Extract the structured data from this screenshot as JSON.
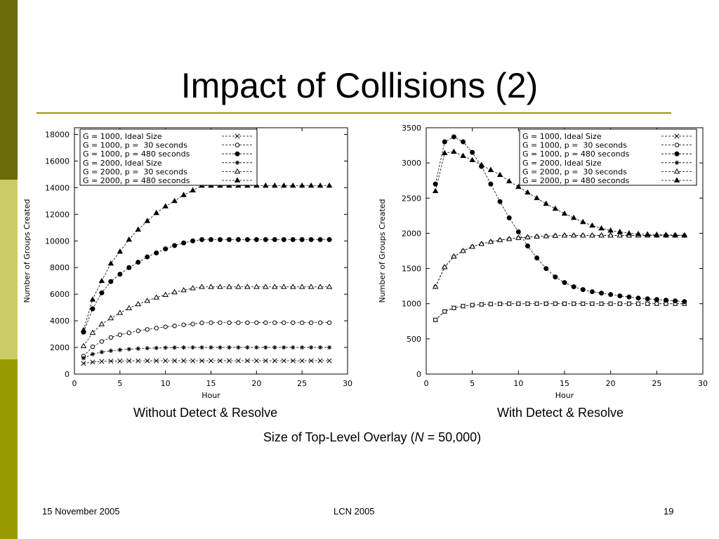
{
  "slide": {
    "title": "Impact of Collisions (2)",
    "caption_left": "Without Detect & Resolve",
    "caption_right": "With Detect & Resolve",
    "caption_size_prefix": "Size of Top-Level Overlay (",
    "caption_size_var": "N",
    "caption_size_suffix": " = 50,000)",
    "accent_dark": "#6b6b0a",
    "accent_light": "#cccc66",
    "accent_mid": "#999900"
  },
  "footer": {
    "date": "15 November 2005",
    "conference": "LCN 2005",
    "page": "19"
  },
  "chart_data": [
    {
      "type": "line",
      "subtitle": "Without Detect & Resolve",
      "xlabel": "Hour",
      "ylabel": "Number of Groups Created",
      "xlim": [
        0,
        30
      ],
      "ylim": [
        0,
        18500
      ],
      "xticks": [
        0,
        5,
        10,
        15,
        20,
        25,
        30
      ],
      "yticks": [
        0,
        2000,
        4000,
        6000,
        8000,
        10000,
        12000,
        14000,
        16000,
        18000
      ],
      "legend_position": "top-left",
      "grid": false,
      "x": [
        1,
        2,
        3,
        4,
        5,
        6,
        7,
        8,
        9,
        10,
        11,
        12,
        13,
        14,
        15,
        16,
        17,
        18,
        19,
        20,
        21,
        22,
        23,
        24,
        25,
        26,
        27,
        28
      ],
      "series": [
        {
          "name": "G = 1000, Ideal Size",
          "marker": "x",
          "values": [
            800,
            900,
            950,
            975,
            985,
            990,
            995,
            998,
            1000,
            1000,
            1000,
            1000,
            1000,
            1000,
            1000,
            1000,
            1000,
            1000,
            1000,
            1000,
            1000,
            1000,
            1000,
            1000,
            1000,
            1000,
            1000,
            1000
          ]
        },
        {
          "name": "G = 1000, p =  30 seconds",
          "marker": "circle-open",
          "values": [
            1350,
            2050,
            2450,
            2750,
            2950,
            3100,
            3250,
            3350,
            3450,
            3550,
            3620,
            3700,
            3760,
            3850,
            3860,
            3860,
            3860,
            3860,
            3860,
            3860,
            3860,
            3860,
            3860,
            3860,
            3860,
            3860,
            3860,
            3860
          ]
        },
        {
          "name": "G = 1000, p = 480 seconds",
          "marker": "circle-filled",
          "values": [
            3150,
            4900,
            6100,
            6950,
            7500,
            8000,
            8400,
            8800,
            9100,
            9400,
            9650,
            9850,
            10000,
            10100,
            10100,
            10100,
            10100,
            10100,
            10100,
            10100,
            10100,
            10100,
            10100,
            10100,
            10100,
            10100,
            10100,
            10100
          ]
        },
        {
          "name": "G = 2000, Ideal Size",
          "marker": "star",
          "values": [
            1200,
            1500,
            1650,
            1750,
            1820,
            1870,
            1910,
            1940,
            1960,
            1980,
            1990,
            1995,
            2000,
            2000,
            2000,
            2000,
            2000,
            2000,
            2000,
            2000,
            2000,
            2000,
            2000,
            2000,
            2000,
            2000,
            2000,
            2000
          ]
        },
        {
          "name": "G = 2000, p =  30 seconds",
          "marker": "triangle-open",
          "values": [
            2100,
            3100,
            3750,
            4200,
            4600,
            4950,
            5250,
            5500,
            5750,
            5950,
            6150,
            6300,
            6450,
            6550,
            6550,
            6550,
            6550,
            6550,
            6550,
            6550,
            6550,
            6550,
            6550,
            6550,
            6550,
            6550,
            6550,
            6550
          ]
        },
        {
          "name": "G = 2000, p = 480 seconds",
          "marker": "triangle-filled",
          "values": [
            3300,
            5600,
            7000,
            8300,
            9200,
            10100,
            10850,
            11500,
            12100,
            12600,
            13000,
            13450,
            13800,
            14150,
            14150,
            14150,
            14150,
            14150,
            14150,
            14150,
            14150,
            14150,
            14150,
            14150,
            14150,
            14150,
            14150,
            14150
          ]
        }
      ]
    },
    {
      "type": "line",
      "subtitle": "With Detect & Resolve",
      "xlabel": "Hour",
      "ylabel": "Number of Groups Created",
      "xlim": [
        0,
        30
      ],
      "ylim": [
        0,
        3500
      ],
      "xticks": [
        0,
        5,
        10,
        15,
        20,
        25,
        30
      ],
      "yticks": [
        0,
        500,
        1000,
        1500,
        2000,
        2500,
        3000,
        3500
      ],
      "legend_position": "top-right",
      "grid": false,
      "x": [
        1,
        2,
        3,
        4,
        5,
        6,
        7,
        8,
        9,
        10,
        11,
        12,
        13,
        14,
        15,
        16,
        17,
        18,
        19,
        20,
        21,
        22,
        23,
        24,
        25,
        26,
        27,
        28
      ],
      "series": [
        {
          "name": "G = 1000, Ideal Size",
          "marker": "x",
          "values": [
            770,
            890,
            940,
            965,
            980,
            990,
            995,
            998,
            1000,
            1000,
            1000,
            1000,
            1000,
            1000,
            1000,
            1000,
            1000,
            1000,
            1000,
            1000,
            1000,
            1000,
            1000,
            1000,
            1000,
            1000,
            1000,
            1000
          ]
        },
        {
          "name": "G = 1000, p =  30 seconds",
          "marker": "circle-open",
          "values": [
            770,
            890,
            940,
            965,
            980,
            990,
            995,
            998,
            1000,
            1000,
            1000,
            1000,
            1000,
            1000,
            1000,
            1000,
            1000,
            1000,
            1000,
            1000,
            1000,
            1000,
            1000,
            1000,
            1000,
            1000,
            1000,
            1000
          ]
        },
        {
          "name": "G = 1000, p = 480 seconds",
          "marker": "circle-filled",
          "values": [
            2700,
            3300,
            3370,
            3300,
            3150,
            2950,
            2700,
            2450,
            2220,
            2020,
            1820,
            1650,
            1500,
            1380,
            1300,
            1240,
            1200,
            1170,
            1150,
            1130,
            1110,
            1095,
            1080,
            1070,
            1060,
            1050,
            1040,
            1030
          ]
        },
        {
          "name": "G = 2000, Ideal Size",
          "marker": "star",
          "values": [
            1240,
            1520,
            1670,
            1750,
            1810,
            1850,
            1880,
            1905,
            1920,
            1935,
            1945,
            1955,
            1960,
            1965,
            1970,
            1970,
            1970,
            1970,
            1970,
            1970,
            1970,
            1970,
            1970,
            1970,
            1970,
            1970,
            1970,
            1970
          ]
        },
        {
          "name": "G = 2000, p =  30 seconds",
          "marker": "triangle-open",
          "values": [
            1240,
            1520,
            1670,
            1750,
            1810,
            1850,
            1880,
            1905,
            1920,
            1935,
            1945,
            1955,
            1960,
            1965,
            1970,
            1970,
            1970,
            1970,
            1970,
            1970,
            1970,
            1970,
            1970,
            1970,
            1970,
            1970,
            1970,
            1970
          ]
        },
        {
          "name": "G = 2000, p = 480 seconds",
          "marker": "triangle-filled",
          "values": [
            2600,
            3140,
            3160,
            3100,
            3040,
            2970,
            2900,
            2830,
            2740,
            2660,
            2580,
            2500,
            2420,
            2350,
            2280,
            2220,
            2160,
            2110,
            2070,
            2040,
            2020,
            2000,
            1990,
            1985,
            1980,
            1978,
            1975,
            1972
          ]
        }
      ]
    }
  ]
}
